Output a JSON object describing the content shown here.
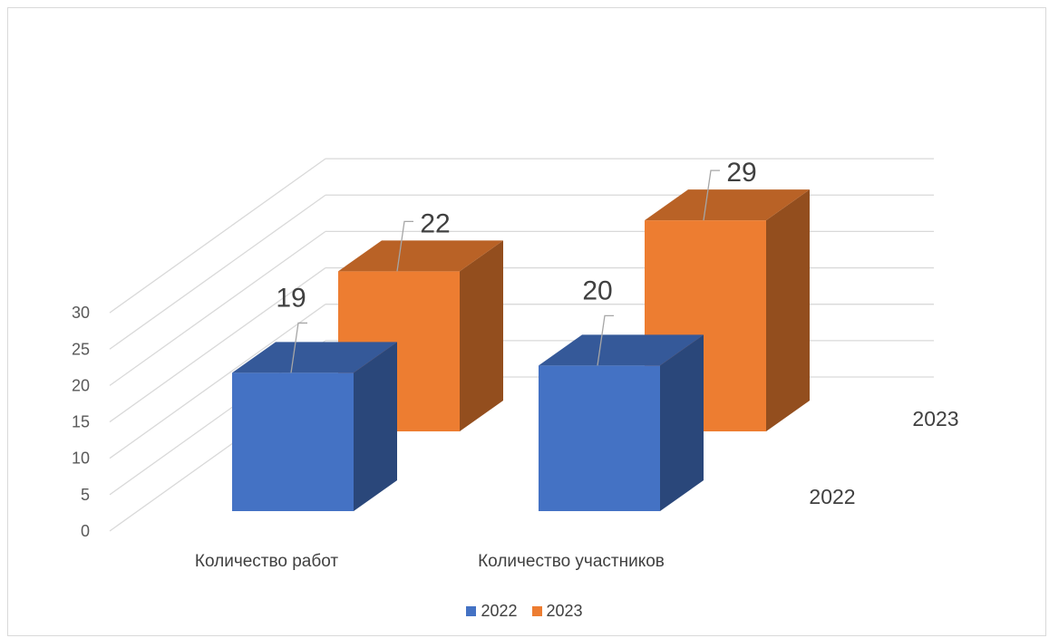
{
  "chart_data": {
    "type": "bar",
    "categories": [
      "Количество работ",
      "Количество участников"
    ],
    "series": [
      {
        "name": "2022",
        "values": [
          19,
          20
        ],
        "color": "#4472C4"
      },
      {
        "name": "2023",
        "values": [
          22,
          29
        ],
        "color": "#ED7D31"
      }
    ],
    "ylim": [
      0,
      30
    ],
    "yticks": [
      0,
      5,
      10,
      15,
      20,
      25,
      30
    ],
    "depth_labels": [
      "2022",
      "2023"
    ],
    "grid": true,
    "legend": "bottom",
    "title": "",
    "xlabel": "",
    "ylabel": ""
  }
}
